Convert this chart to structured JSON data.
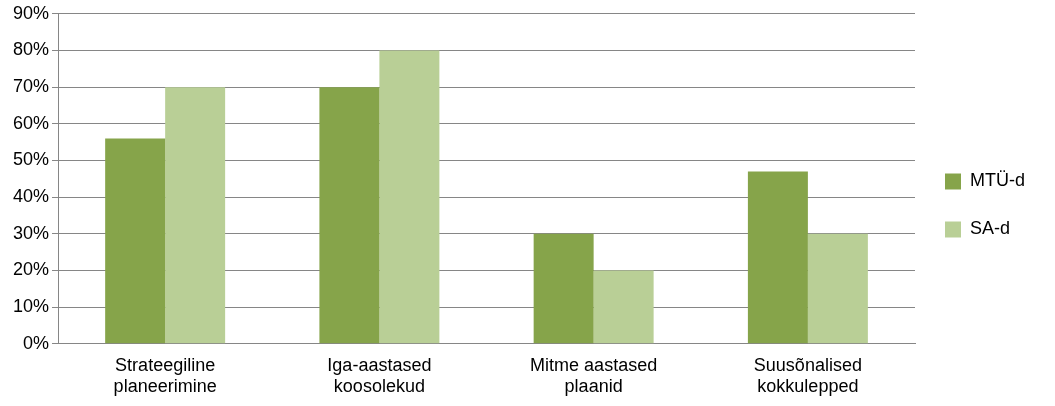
{
  "chart_data": {
    "type": "bar",
    "categories": [
      "Strateegiline planeerimine",
      "Iga-aastased koosolekud",
      "Mitme aastased plaanid",
      "Suusõnalised kokkulepped"
    ],
    "series": [
      {
        "name": "MTÜ-d",
        "color": "#86a44a",
        "values": [
          56,
          70,
          30,
          47
        ]
      },
      {
        "name": "SA-d",
        "color": "#b9cf96",
        "values": [
          70,
          80,
          20,
          30
        ]
      }
    ],
    "ylim": [
      0,
      90
    ],
    "yticks": [
      {
        "value": 0,
        "label": "0%"
      },
      {
        "value": 10,
        "label": "10%"
      },
      {
        "value": 20,
        "label": "20%"
      },
      {
        "value": 30,
        "label": "30%"
      },
      {
        "value": 40,
        "label": "40%"
      },
      {
        "value": 50,
        "label": "50%"
      },
      {
        "value": 60,
        "label": "60%"
      },
      {
        "value": 70,
        "label": "70%"
      },
      {
        "value": 80,
        "label": "80%"
      },
      {
        "value": 90,
        "label": "90%"
      }
    ],
    "grid": "y",
    "legend": "right"
  }
}
